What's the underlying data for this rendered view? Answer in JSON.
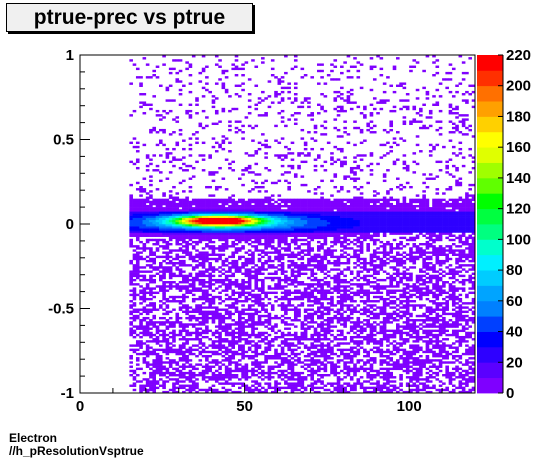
{
  "title": "ptrue-prec vs ptrue",
  "footer": {
    "line1": "Electron",
    "line2": "//h_pResolutionVsptrue"
  },
  "colors": {
    "background": "#ffffff",
    "palette": [
      "#7f00ff",
      "#5a00ff",
      "#2e00ff",
      "#0000ff",
      "#0040ff",
      "#0080ff",
      "#00a4ff",
      "#00ccff",
      "#00f0ff",
      "#00ffcc",
      "#00ff80",
      "#00ff40",
      "#00ff00",
      "#60ff00",
      "#a0ff00",
      "#e0ff00",
      "#ffff00",
      "#ffd000",
      "#ffa000",
      "#ff7000",
      "#ff3000",
      "#ff0000"
    ]
  },
  "chart_data": {
    "type": "heatmap",
    "title": "ptrue-prec vs ptrue",
    "xlabel": "",
    "ylabel": "",
    "xlim": [
      0,
      120
    ],
    "ylim": [
      -1,
      1
    ],
    "x_ticks": [
      0,
      50,
      100
    ],
    "y_ticks": [
      -1,
      -0.5,
      0,
      0.5,
      1
    ],
    "y_tick_labels": [
      "-1",
      "-0.5",
      "0",
      "0.5",
      "1"
    ],
    "colorbar": {
      "min": 0,
      "max": 220,
      "ticks": [
        0,
        20,
        40,
        60,
        80,
        100,
        120,
        140,
        160,
        180,
        200,
        220
      ]
    },
    "x_start": 15,
    "peak": {
      "x": 42,
      "y": 0.02,
      "count": 220
    },
    "core_band": [
      -0.05,
      0.08
    ],
    "grid": false,
    "legend": "none"
  }
}
